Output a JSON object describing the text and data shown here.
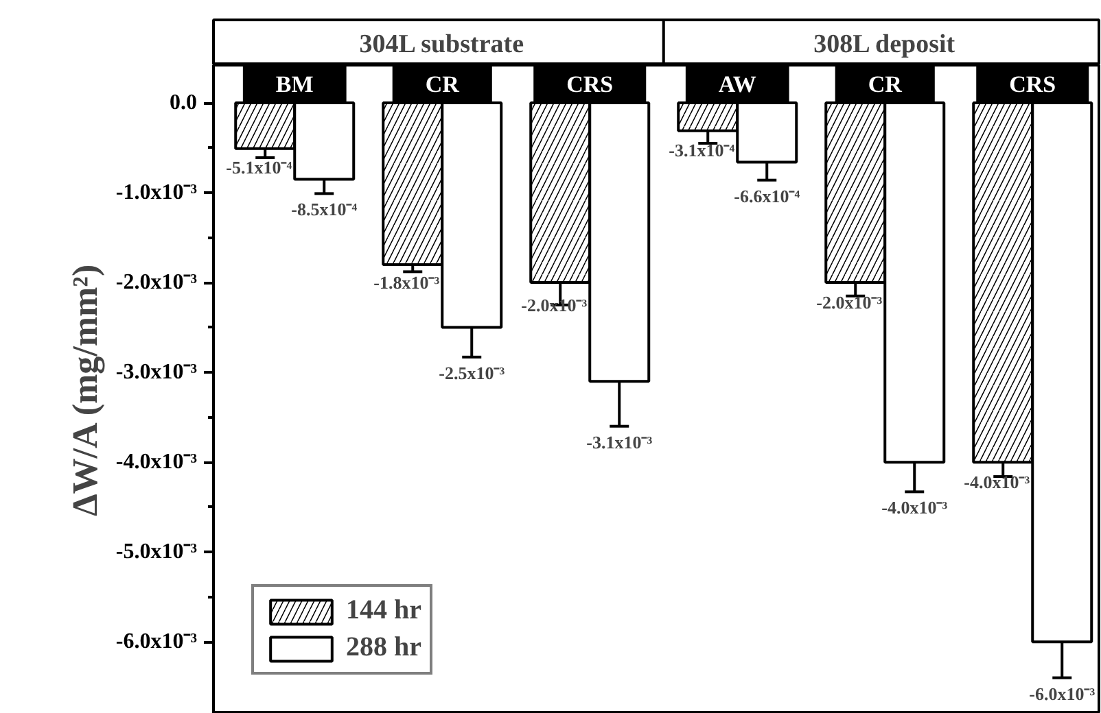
{
  "chart_data": {
    "type": "bar",
    "ylabel": "ΔW/A (mg/mm²)",
    "categories": [
      "BM",
      "CR",
      "CRS",
      "AW",
      "CR",
      "CRS"
    ],
    "annotations": [
      "304L substrate",
      "308L deposit"
    ],
    "series": [
      {
        "name": "144 hr",
        "color": "#ffffff",
        "values": [
          -0.00051,
          -0.0018,
          -0.002,
          -0.00031,
          -0.002,
          -0.004
        ],
        "errors": [
          0.0001,
          8e-05,
          0.00025,
          0.00014,
          0.00015,
          0.00016
        ],
        "value_labels": [
          "-5.1x10⁻⁴",
          "-1.8x10⁻³",
          "-2.0x10⁻³",
          "-3.1x10⁻⁴",
          "-2.0x10⁻³",
          "-4.0x10⁻³"
        ]
      },
      {
        "name": "288 hr",
        "color": "#ffffff",
        "values": [
          -0.00085,
          -0.0025,
          -0.0031,
          -0.00066,
          -0.004,
          -0.006
        ],
        "errors": [
          0.00016,
          0.00033,
          0.0005,
          0.0002,
          0.00033,
          0.0004
        ],
        "value_labels": [
          "-8.5x10⁻⁴",
          "-2.5x10⁻³",
          "-3.1x10⁻³",
          "-6.6x10⁻⁴",
          "-4.0x10⁻³",
          "-6.0x10⁻³"
        ]
      }
    ],
    "ylim": [
      -0.0068,
      0.00042
    ],
    "yticks": [
      {
        "value": 0,
        "label": "0.0"
      },
      {
        "value": -0.0005,
        "label": null
      },
      {
        "value": -0.001,
        "label": "-1.0x10⁻³"
      },
      {
        "value": -0.0015,
        "label": null
      },
      {
        "value": -0.002,
        "label": "-2.0x10⁻³"
      },
      {
        "value": -0.0025,
        "label": null
      },
      {
        "value": -0.003,
        "label": "-3.0x10⁻³"
      },
      {
        "value": -0.0035,
        "label": null
      },
      {
        "value": -0.004,
        "label": "-4.0x10⁻³"
      },
      {
        "value": -0.0045,
        "label": null
      },
      {
        "value": -0.005,
        "label": "-5.0x10⁻³"
      },
      {
        "value": -0.0055,
        "label": null
      },
      {
        "value": -0.006,
        "label": "-6.0x10⁻³"
      }
    ],
    "tick_labels": "y",
    "grid": false,
    "legend": "bottom left"
  }
}
